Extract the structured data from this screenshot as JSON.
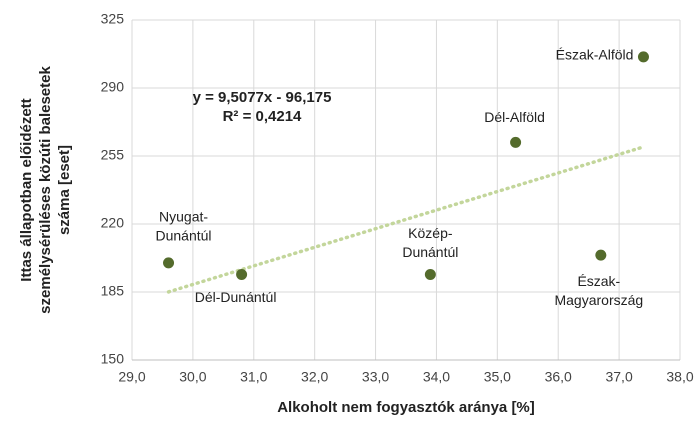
{
  "chart_data": {
    "type": "scatter",
    "x_label": "Alkoholt nem fogyasztók aránya [%]",
    "y_label": [
      "Ittas állapotban előidézett",
      "személysérüléses közúti balesetek",
      "száma [eset]"
    ],
    "x": [
      29.6,
      30.8,
      33.9,
      35.3,
      36.7,
      37.4
    ],
    "values": [
      200,
      194,
      194,
      262,
      204,
      306
    ],
    "labels": [
      [
        "Nyugat-",
        "Dunántúl"
      ],
      [
        "Dél-Dunántúl"
      ],
      [
        "Közép-",
        "Dunántúl"
      ],
      [
        "Dél-Alföld"
      ],
      [
        "Észak-",
        "Magyarország"
      ],
      [
        "Észak-Alföld"
      ]
    ],
    "color": "#546b2c",
    "trendline": {
      "color": "#c3d69b",
      "equation": "y = 9,5077x - 96,175",
      "r2": "R² = 0,4214"
    },
    "xlim": [
      29,
      38
    ],
    "xticks": [
      {
        "value": 29,
        "label": "29,0"
      },
      {
        "value": 30,
        "label": "30,0"
      },
      {
        "value": 31,
        "label": "31,0"
      },
      {
        "value": 32,
        "label": "32,0"
      },
      {
        "value": 33,
        "label": "33,0"
      },
      {
        "value": 34,
        "label": "34,0"
      },
      {
        "value": 35,
        "label": "35,0"
      },
      {
        "value": 36,
        "label": "36,0"
      },
      {
        "value": 37,
        "label": "37,0"
      },
      {
        "value": 38,
        "label": "38,0"
      }
    ],
    "ylim": [
      150,
      325
    ],
    "yticks": [
      150,
      185,
      220,
      255,
      290,
      325
    ],
    "grid": true
  }
}
